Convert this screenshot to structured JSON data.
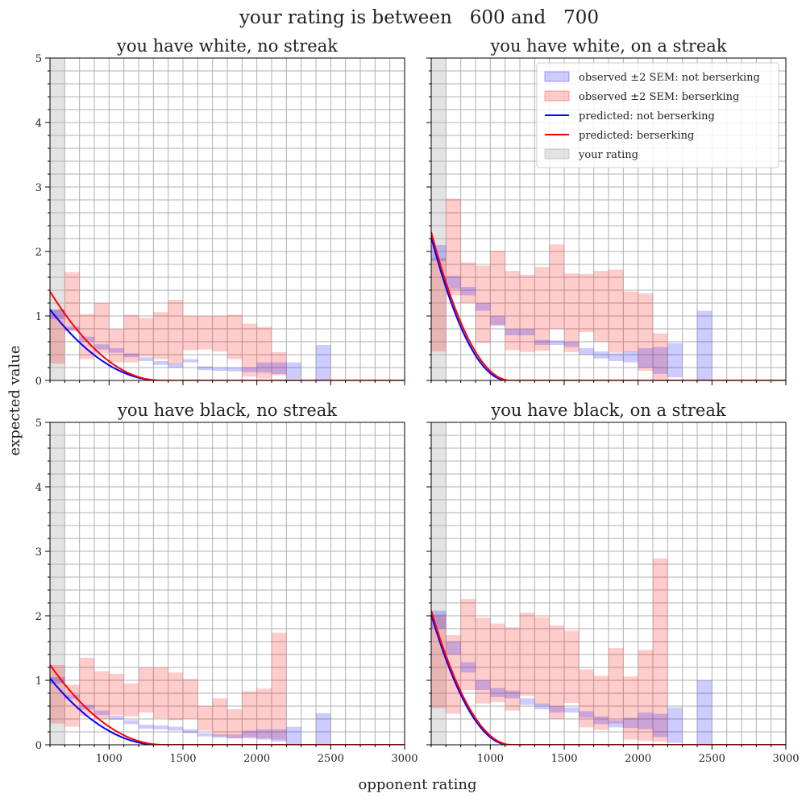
{
  "figure": {
    "suptitle": "your rating is between   600 and   700",
    "xlabel": "opponent rating",
    "ylabel": "expected value"
  },
  "legend": {
    "placement": "top-right",
    "entries": [
      {
        "kind": "patch",
        "label": "observed ±2 SEM: not berserking",
        "color": "#0000ff",
        "alpha": 0.2
      },
      {
        "kind": "patch",
        "label": "observed ±2 SEM: berserking",
        "color": "#ff0000",
        "alpha": 0.2
      },
      {
        "kind": "line",
        "label": "predicted: not berserking",
        "color": "#0000ff"
      },
      {
        "kind": "line",
        "label": "predicted: berserking",
        "color": "#ff0000"
      },
      {
        "kind": "patch",
        "label": "your rating",
        "color": "#808080",
        "alpha": 0.22
      }
    ]
  },
  "chart_data": [
    {
      "type": "area",
      "title": "you have white, no streak",
      "xlim": [
        600,
        3000
      ],
      "ylim": [
        0,
        5
      ],
      "xticks": [
        1000,
        1500,
        2000,
        2500,
        3000
      ],
      "yticks": [
        0,
        1,
        2,
        3,
        4,
        5
      ],
      "grid": true,
      "your_rating": [
        600,
        700
      ],
      "bin_width": 100,
      "observed_not_berserk": [
        [
          650,
          0.95,
          1.1
        ],
        [
          750,
          0.78,
          0.84
        ],
        [
          850,
          0.6,
          0.68
        ],
        [
          950,
          0.48,
          0.56
        ],
        [
          1050,
          0.43,
          0.5
        ],
        [
          1150,
          0.36,
          0.42
        ],
        [
          1250,
          0.3,
          0.36
        ],
        [
          1350,
          0.24,
          0.3
        ],
        [
          1450,
          0.2,
          0.26
        ],
        [
          1550,
          0.28,
          0.33
        ],
        [
          1650,
          0.16,
          0.22
        ],
        [
          1750,
          0.15,
          0.2
        ],
        [
          1850,
          0.14,
          0.2
        ],
        [
          1950,
          0.13,
          0.2
        ],
        [
          2050,
          0.12,
          0.28
        ],
        [
          2150,
          0.1,
          0.28
        ],
        [
          2250,
          0.02,
          0.28
        ],
        [
          2450,
          0.0,
          0.55
        ]
      ],
      "observed_berserk": [
        [
          650,
          0.26,
          1.1
        ],
        [
          750,
          0.76,
          1.68
        ],
        [
          850,
          0.33,
          1.03
        ],
        [
          950,
          0.42,
          1.2
        ],
        [
          1050,
          0.28,
          0.8
        ],
        [
          1150,
          0.28,
          1.02
        ],
        [
          1250,
          0.37,
          0.97
        ],
        [
          1350,
          0.33,
          1.06
        ],
        [
          1450,
          0.25,
          1.25
        ],
        [
          1550,
          0.47,
          1.0
        ],
        [
          1650,
          0.48,
          1.0
        ],
        [
          1750,
          0.45,
          1.0
        ],
        [
          1850,
          0.33,
          1.02
        ],
        [
          1950,
          0.06,
          0.88
        ],
        [
          2050,
          0.03,
          0.83
        ],
        [
          2150,
          0.08,
          0.44
        ]
      ],
      "predicted_not_berserk": {
        "a": 1.1,
        "b": 0.00134,
        "x": [
          600,
          700,
          800,
          900,
          1000,
          1100,
          1200,
          1300,
          1400,
          1500,
          1600,
          1700,
          1800,
          1900,
          2000,
          2100,
          2200,
          2300,
          2400,
          2500,
          3000
        ]
      },
      "predicted_berserk": {
        "a": 1.38,
        "b": 0.00134,
        "x": [
          600,
          700,
          800,
          900,
          1000,
          1100,
          1200,
          1300,
          1400,
          1500,
          1600,
          1700,
          1800,
          1900,
          2000,
          2100,
          2200,
          2300,
          2400,
          2500,
          3000
        ]
      }
    },
    {
      "type": "area",
      "title": "you have white, on a streak",
      "xlim": [
        600,
        3000
      ],
      "ylim": [
        0,
        5
      ],
      "xticks": [
        1000,
        1500,
        2000,
        2500,
        3000
      ],
      "yticks": [
        0,
        1,
        2,
        3,
        4,
        5
      ],
      "grid": true,
      "your_rating": [
        600,
        700
      ],
      "bin_width": 100,
      "observed_not_berserk": [
        [
          650,
          1.85,
          2.1
        ],
        [
          750,
          1.42,
          1.62
        ],
        [
          850,
          1.32,
          1.45
        ],
        [
          950,
          1.08,
          1.2
        ],
        [
          1050,
          0.85,
          1.0
        ],
        [
          1150,
          0.7,
          0.8
        ],
        [
          1250,
          0.7,
          0.8
        ],
        [
          1350,
          0.55,
          0.63
        ],
        [
          1450,
          0.55,
          0.62
        ],
        [
          1550,
          0.52,
          0.6
        ],
        [
          1650,
          0.4,
          0.5
        ],
        [
          1750,
          0.34,
          0.45
        ],
        [
          1850,
          0.3,
          0.42
        ],
        [
          1950,
          0.28,
          0.45
        ],
        [
          2050,
          0.2,
          0.5
        ],
        [
          2150,
          0.1,
          0.52
        ],
        [
          2250,
          0.05,
          0.58
        ],
        [
          2450,
          0.0,
          1.08
        ]
      ],
      "observed_berserk": [
        [
          650,
          0.45,
          1.9
        ],
        [
          750,
          1.32,
          2.82
        ],
        [
          850,
          1.2,
          1.83
        ],
        [
          950,
          0.58,
          1.78
        ],
        [
          1050,
          0.86,
          2.01
        ],
        [
          1150,
          0.47,
          1.7
        ],
        [
          1250,
          0.44,
          1.64
        ],
        [
          1350,
          0.46,
          1.76
        ],
        [
          1450,
          0.8,
          2.11
        ],
        [
          1550,
          0.44,
          1.66
        ],
        [
          1650,
          0.75,
          1.65
        ],
        [
          1750,
          0.6,
          1.7
        ],
        [
          1850,
          0.43,
          1.72
        ],
        [
          1950,
          0.44,
          1.38
        ],
        [
          2050,
          0.15,
          1.35
        ],
        [
          2150,
          0.02,
          0.73
        ]
      ],
      "predicted_not_berserk": {
        "a": 2.22,
        "b": 0.00194,
        "x": [
          600,
          700,
          800,
          900,
          1000,
          1100,
          1200,
          1300,
          1400,
          1500,
          1600,
          1700,
          1800,
          1900,
          2000,
          2100,
          2200,
          2300,
          2400,
          2500,
          3000
        ]
      },
      "predicted_berserk": {
        "a": 2.3,
        "b": 0.00187,
        "x": [
          600,
          700,
          800,
          900,
          1000,
          1100,
          1200,
          1300,
          1400,
          1500,
          1600,
          1700,
          1800,
          1900,
          2000,
          2100,
          2200,
          2300,
          2400,
          2500,
          3000
        ]
      }
    },
    {
      "type": "area",
      "title": "you have black, no streak",
      "xlim": [
        600,
        3000
      ],
      "ylim": [
        0,
        5
      ],
      "xticks": [
        1000,
        1500,
        2000,
        2500,
        3000
      ],
      "yticks": [
        0,
        1,
        2,
        3,
        4,
        5
      ],
      "grid": true,
      "your_rating": [
        600,
        700
      ],
      "bin_width": 100,
      "observed_not_berserk": [
        [
          650,
          0.95,
          1.05
        ],
        [
          750,
          0.71,
          0.78
        ],
        [
          850,
          0.55,
          0.62
        ],
        [
          950,
          0.46,
          0.53
        ],
        [
          1050,
          0.39,
          0.45
        ],
        [
          1150,
          0.32,
          0.38
        ],
        [
          1250,
          0.25,
          0.31
        ],
        [
          1350,
          0.24,
          0.3
        ],
        [
          1450,
          0.22,
          0.28
        ],
        [
          1550,
          0.18,
          0.24
        ],
        [
          1650,
          0.13,
          0.18
        ],
        [
          1750,
          0.11,
          0.16
        ],
        [
          1850,
          0.1,
          0.16
        ],
        [
          1950,
          0.1,
          0.22
        ],
        [
          2050,
          0.08,
          0.24
        ],
        [
          2150,
          0.05,
          0.24
        ],
        [
          2250,
          0.01,
          0.28
        ],
        [
          2450,
          0.0,
          0.49
        ]
      ],
      "observed_berserk": [
        [
          650,
          0.33,
          1.24
        ],
        [
          750,
          0.28,
          0.93
        ],
        [
          850,
          0.45,
          1.35
        ],
        [
          950,
          0.4,
          1.14
        ],
        [
          1050,
          0.46,
          1.1
        ],
        [
          1150,
          0.44,
          0.95
        ],
        [
          1250,
          0.5,
          1.2
        ],
        [
          1350,
          0.41,
          1.2
        ],
        [
          1450,
          0.38,
          1.12
        ],
        [
          1550,
          0.4,
          1.02
        ],
        [
          1650,
          0.22,
          0.6
        ],
        [
          1750,
          0.13,
          0.72
        ],
        [
          1850,
          0.1,
          0.55
        ],
        [
          1950,
          0.12,
          0.83
        ],
        [
          2050,
          0.1,
          0.87
        ],
        [
          2150,
          0.08,
          1.74
        ]
      ],
      "predicted_not_berserk": {
        "a": 1.03,
        "b": 0.00136,
        "x": [
          600,
          700,
          800,
          900,
          1000,
          1100,
          1200,
          1300,
          1400,
          1500,
          1600,
          1700,
          1800,
          1900,
          2000,
          2100,
          2200,
          2300,
          2400,
          2500,
          3000
        ]
      },
      "predicted_berserk": {
        "a": 1.24,
        "b": 0.00131,
        "x": [
          600,
          700,
          800,
          900,
          1000,
          1100,
          1200,
          1300,
          1400,
          1500,
          1600,
          1700,
          1800,
          1900,
          2000,
          2100,
          2200,
          2300,
          2400,
          2500,
          3000
        ]
      }
    },
    {
      "type": "area",
      "title": "you have black, on a streak",
      "xlim": [
        600,
        3000
      ],
      "ylim": [
        0,
        5
      ],
      "xticks": [
        1000,
        1500,
        2000,
        2500,
        3000
      ],
      "yticks": [
        0,
        1,
        2,
        3,
        4,
        5
      ],
      "grid": true,
      "your_rating": [
        600,
        700
      ],
      "bin_width": 100,
      "observed_not_berserk": [
        [
          650,
          1.8,
          2.08
        ],
        [
          750,
          1.4,
          1.6
        ],
        [
          850,
          1.12,
          1.28
        ],
        [
          950,
          0.85,
          1.0
        ],
        [
          1050,
          0.74,
          0.88
        ],
        [
          1150,
          0.72,
          0.84
        ],
        [
          1250,
          0.62,
          0.72
        ],
        [
          1350,
          0.55,
          0.64
        ],
        [
          1450,
          0.5,
          0.6
        ],
        [
          1550,
          0.5,
          0.58
        ],
        [
          1650,
          0.42,
          0.52
        ],
        [
          1750,
          0.32,
          0.44
        ],
        [
          1850,
          0.27,
          0.38
        ],
        [
          1950,
          0.26,
          0.42
        ],
        [
          2050,
          0.24,
          0.5
        ],
        [
          2150,
          0.12,
          0.48
        ],
        [
          2250,
          0.03,
          0.58
        ],
        [
          2450,
          0.0,
          1.0
        ]
      ],
      "observed_berserk": [
        [
          650,
          0.57,
          2.02
        ],
        [
          750,
          0.48,
          1.7
        ],
        [
          850,
          0.85,
          2.26
        ],
        [
          950,
          0.64,
          1.97
        ],
        [
          1050,
          0.66,
          1.88
        ],
        [
          1150,
          0.53,
          1.82
        ],
        [
          1250,
          0.76,
          2.05
        ],
        [
          1350,
          0.62,
          1.98
        ],
        [
          1450,
          0.4,
          1.85
        ],
        [
          1550,
          0.65,
          1.77
        ],
        [
          1650,
          0.27,
          1.17
        ],
        [
          1750,
          0.23,
          1.07
        ],
        [
          1850,
          0.33,
          1.5
        ],
        [
          1950,
          0.08,
          1.06
        ],
        [
          2050,
          0.06,
          1.47
        ],
        [
          2150,
          0.05,
          2.89
        ]
      ],
      "predicted_not_berserk": {
        "a": 2.02,
        "b": 0.0019,
        "x": [
          600,
          700,
          800,
          900,
          1000,
          1100,
          1200,
          1300,
          1400,
          1500,
          1600,
          1700,
          1800,
          1900,
          2000,
          2100,
          2200,
          2300,
          2400,
          2500,
          3000
        ]
      },
      "predicted_berserk": {
        "a": 2.08,
        "b": 0.00185,
        "x": [
          600,
          700,
          800,
          900,
          1000,
          1100,
          1200,
          1300,
          1400,
          1500,
          1600,
          1700,
          1800,
          1900,
          2000,
          2100,
          2200,
          2300,
          2400,
          2500,
          3000
        ]
      }
    }
  ]
}
